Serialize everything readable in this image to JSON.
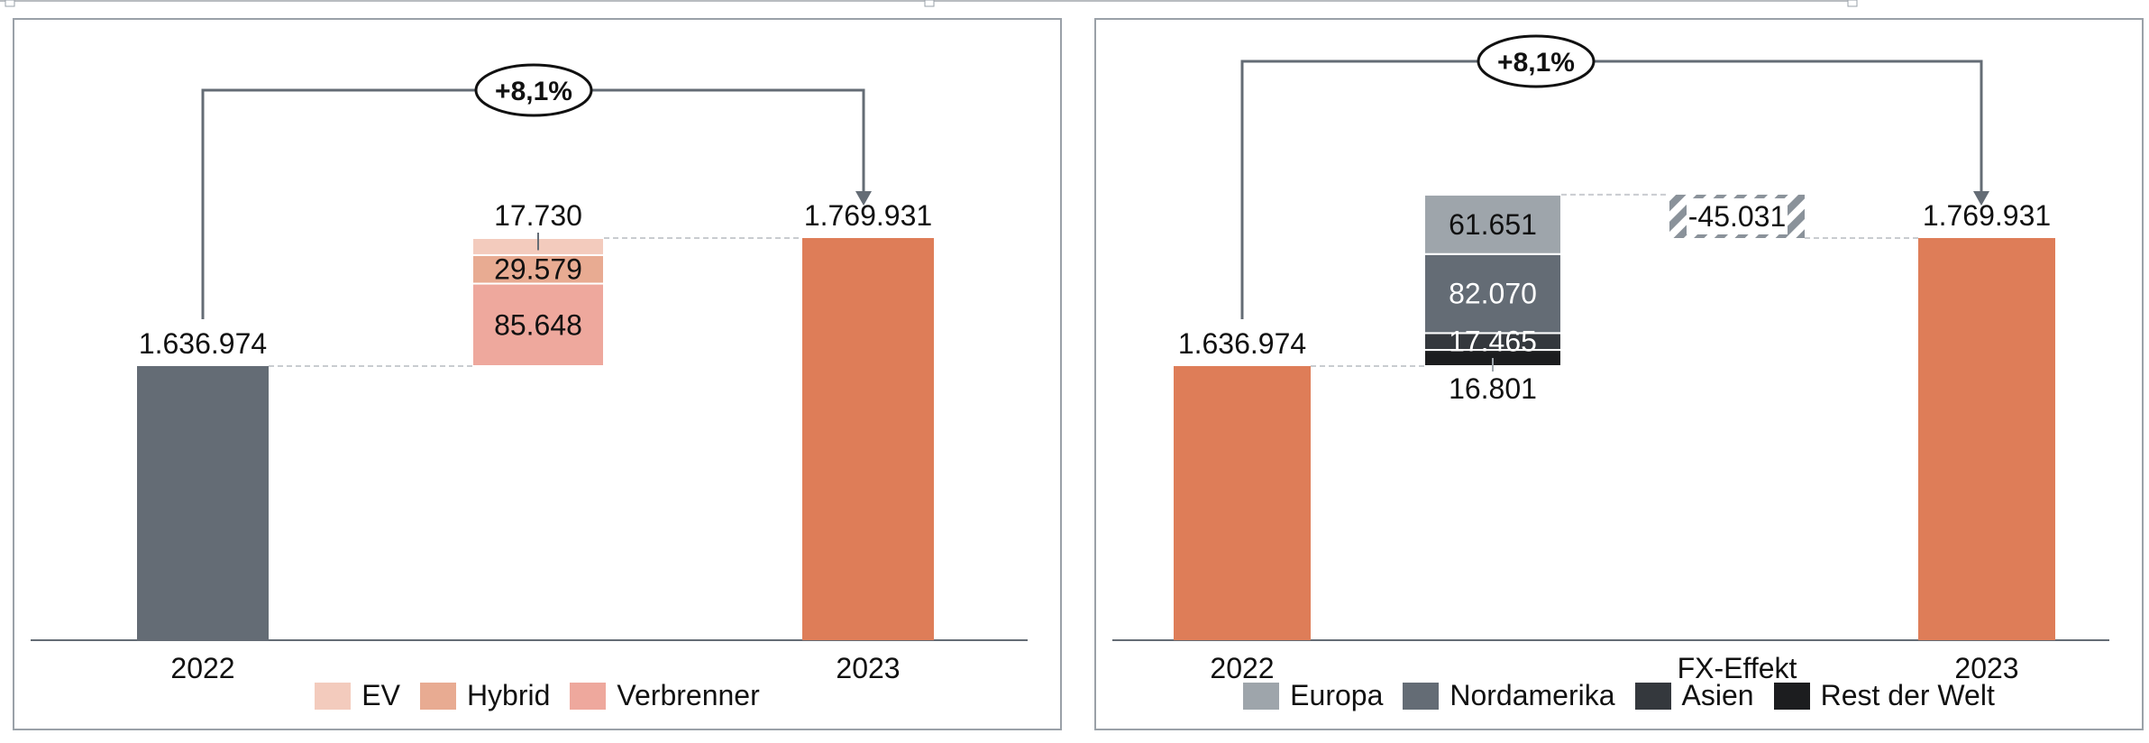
{
  "chart_data": [
    {
      "type": "bar",
      "subtype": "waterfall",
      "categories": [
        "2022",
        "",
        "2023"
      ],
      "start": {
        "label": "2022",
        "value": 1636974,
        "value_text": "1.636.974",
        "color": "#646c75"
      },
      "end": {
        "label": "2023",
        "value": 1769931,
        "value_text": "1.769.931",
        "color": "#de7d58"
      },
      "growth_label": "+8,1%",
      "series": [
        {
          "name": "Verbrenner",
          "value": 85648,
          "value_text": "85.648",
          "color": "#eea89d"
        },
        {
          "name": "Hybrid",
          "value": 29579,
          "value_text": "29.579",
          "color": "#e8ab92"
        },
        {
          "name": "EV",
          "value": 17730,
          "value_text": "17.730",
          "color": "#f3cbbd"
        }
      ],
      "legend": [
        {
          "name": "EV",
          "color": "#f3cbbd"
        },
        {
          "name": "Hybrid",
          "color": "#e8ab92"
        },
        {
          "name": "Verbrenner",
          "color": "#eea89d"
        }
      ],
      "legend_position": "bottom",
      "ylim": [
        0,
        1900000
      ],
      "grid": false
    },
    {
      "type": "bar",
      "subtype": "waterfall",
      "categories": [
        "2022",
        "",
        "FX-Effekt",
        "2023"
      ],
      "start": {
        "label": "2022",
        "value": 1636974,
        "value_text": "1.636.974",
        "color": "#de7d58"
      },
      "end": {
        "label": "2023",
        "value": 1769931,
        "value_text": "1.769.931",
        "color": "#de7d58"
      },
      "growth_label": "+8,1%",
      "series": [
        {
          "name": "Rest der Welt",
          "value": 16801,
          "value_text": "16.801",
          "color": "#1c1d1f"
        },
        {
          "name": "Asien",
          "value": 17465,
          "value_text": "17.465",
          "color": "#34383d"
        },
        {
          "name": "Nordamerika",
          "value": 82070,
          "value_text": "82.070",
          "color": "#646c75"
        },
        {
          "name": "Europa",
          "value": 61651,
          "value_text": "61.651",
          "color": "#9ea5ab"
        }
      ],
      "fx": {
        "label": "FX-Effekt",
        "value": -45031,
        "value_text": "-45.031",
        "color": "#8a929a"
      },
      "legend": [
        {
          "name": "Europa",
          "color": "#9ea5ab"
        },
        {
          "name": "Nordamerika",
          "color": "#646c75"
        },
        {
          "name": "Asien",
          "color": "#34383d"
        },
        {
          "name": "Rest der Welt",
          "color": "#1c1d1f"
        }
      ],
      "legend_position": "bottom",
      "ylim": [
        0,
        1900000
      ],
      "grid": false
    }
  ]
}
